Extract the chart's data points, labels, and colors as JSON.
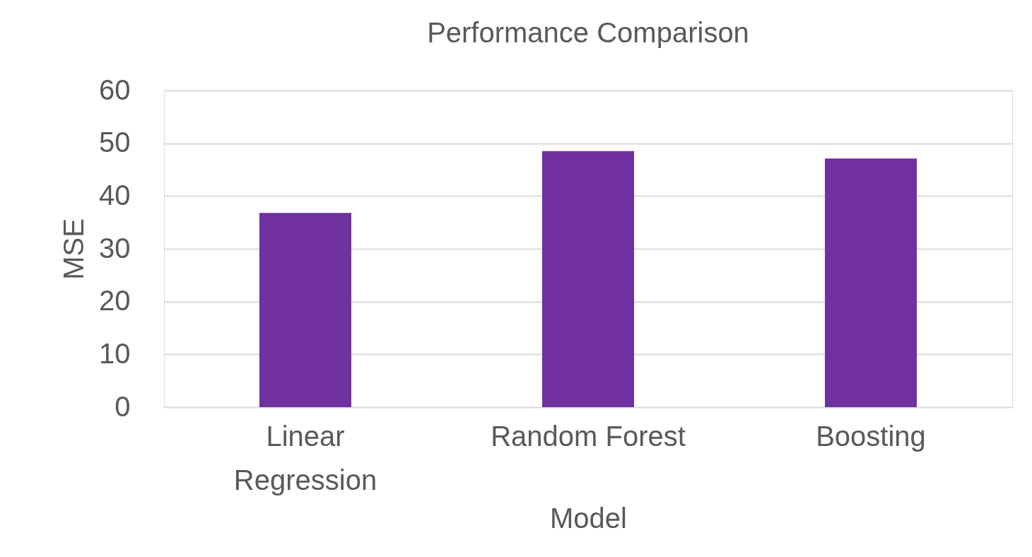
{
  "chart_data": {
    "type": "bar",
    "title": "Performance Comparison",
    "xlabel": "Model",
    "ylabel": "MSE",
    "categories": [
      "Linear Regression",
      "Random Forest",
      "Boosting"
    ],
    "values": [
      36.8,
      48.5,
      47.1
    ],
    "color": "#7030a0",
    "ylim": [
      0,
      60
    ],
    "yticks": [
      0,
      10,
      20,
      30,
      40,
      50,
      60
    ],
    "grid": "y"
  }
}
